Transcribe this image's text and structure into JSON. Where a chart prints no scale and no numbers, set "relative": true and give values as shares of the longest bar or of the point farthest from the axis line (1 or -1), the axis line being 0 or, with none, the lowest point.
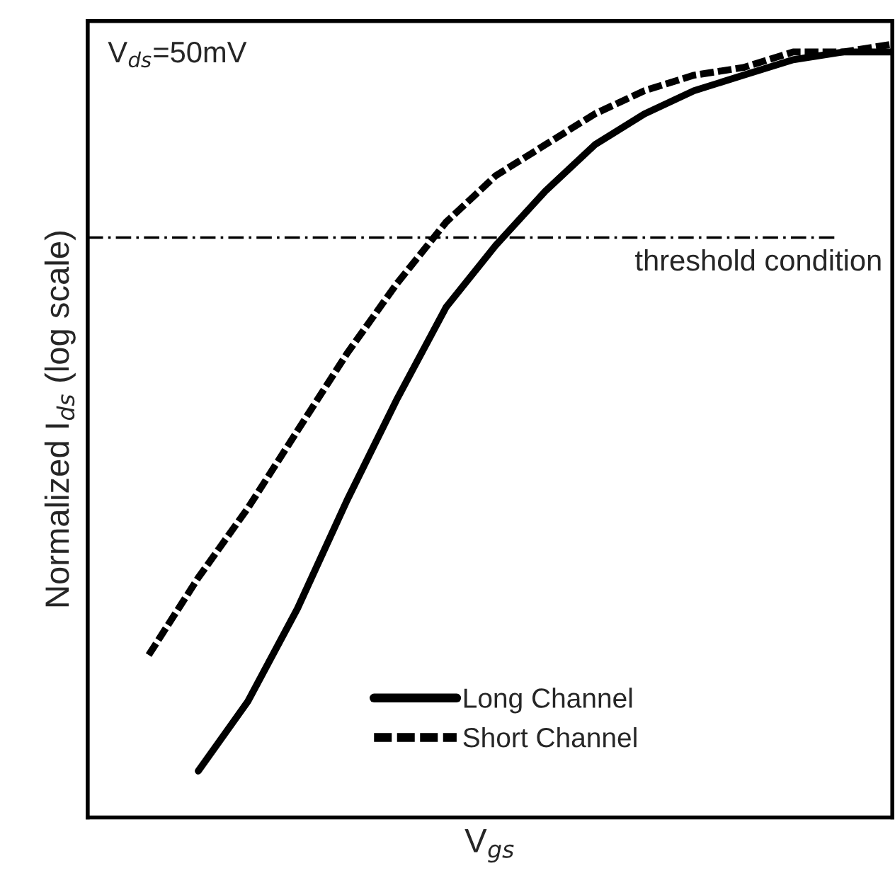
{
  "chart_data": {
    "type": "line",
    "relative": true,
    "xlabel": "V$_{gs}$",
    "ylabel": "Normalized I$_{ds}$ (log scale)",
    "categories": [
      null,
      null,
      null,
      null,
      null,
      null,
      null,
      null,
      null,
      null,
      null,
      null,
      null,
      null,
      null,
      null
    ],
    "series": [
      {
        "name": "Long Channel",
        "color": "#000000",
        "line_style": "solid",
        "values": [
          null,
          0.06,
          0.15,
          0.27,
          0.41,
          0.54,
          0.66,
          0.74,
          0.81,
          0.87,
          0.91,
          0.94,
          0.96,
          0.98,
          0.99,
          0.99
        ]
      },
      {
        "name": "Short Channel",
        "color": "#000000",
        "line_style": "dashed",
        "values": [
          0.21,
          0.31,
          0.4,
          0.5,
          0.6,
          0.69,
          0.77,
          0.83,
          0.87,
          0.91,
          0.94,
          0.96,
          0.97,
          0.99,
          0.99,
          1.0
        ]
      }
    ],
    "ref_lines": [
      {
        "axis": "y",
        "value": 0.75,
        "label": "threshold condition",
        "color": "#000000",
        "line_style": "dashdot"
      }
    ],
    "annotations": [
      "V$_{ds}$=50mV"
    ],
    "legend": "bottom",
    "marker": "none"
  }
}
